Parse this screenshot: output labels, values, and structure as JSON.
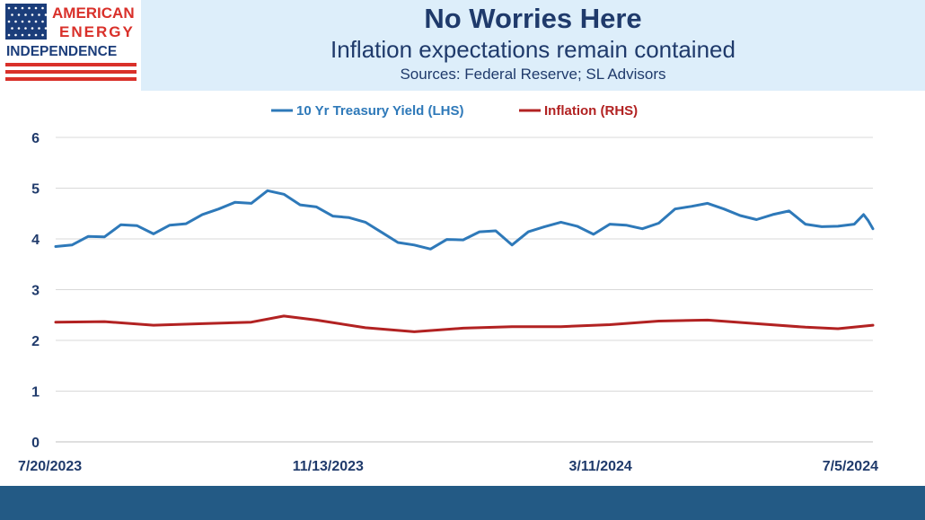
{
  "header": {
    "logo_lines": [
      "AMERICAN",
      "ENERGY",
      "INDEPENDENCE"
    ],
    "title": "No Worries Here",
    "subtitle": "Inflation expectations remain contained",
    "sources": "Sources: Federal Reserve; SL Advisors"
  },
  "colors": {
    "treasury": "#2e79b9",
    "inflation": "#b22222",
    "text": "#1f3a6b",
    "header_band": "#ddeefa",
    "footer": "#235a85",
    "logo_red": "#d9302a",
    "logo_blue": "#1b3d7a"
  },
  "chart_data": {
    "type": "line",
    "x_tick_labels": [
      "7/20/2023",
      "11/13/2023",
      "3/11/2024",
      "7/5/2024"
    ],
    "x_start": "2023-07-20",
    "x_end": "2024-07-05",
    "ylim": [
      0,
      6
    ],
    "y_ticks": [
      0,
      1,
      2,
      3,
      4,
      5,
      6
    ],
    "grid": true,
    "legend_position": "top-center",
    "series": [
      {
        "name": "10 Yr Treasury Yield (LHS)",
        "color": "#2e79b9",
        "points": [
          [
            "2023-07-20",
            3.85
          ],
          [
            "2023-07-27",
            3.88
          ],
          [
            "2023-08-03",
            4.05
          ],
          [
            "2023-08-10",
            4.04
          ],
          [
            "2023-08-17",
            4.28
          ],
          [
            "2023-08-24",
            4.26
          ],
          [
            "2023-08-31",
            4.1
          ],
          [
            "2023-09-07",
            4.27
          ],
          [
            "2023-09-14",
            4.3
          ],
          [
            "2023-09-21",
            4.48
          ],
          [
            "2023-09-28",
            4.59
          ],
          [
            "2023-10-05",
            4.72
          ],
          [
            "2023-10-12",
            4.7
          ],
          [
            "2023-10-19",
            4.95
          ],
          [
            "2023-10-26",
            4.88
          ],
          [
            "2023-11-02",
            4.67
          ],
          [
            "2023-11-09",
            4.63
          ],
          [
            "2023-11-16",
            4.45
          ],
          [
            "2023-11-23",
            4.42
          ],
          [
            "2023-11-30",
            4.33
          ],
          [
            "2023-12-07",
            4.13
          ],
          [
            "2023-12-14",
            3.93
          ],
          [
            "2023-12-21",
            3.88
          ],
          [
            "2023-12-28",
            3.8
          ],
          [
            "2024-01-04",
            3.99
          ],
          [
            "2024-01-11",
            3.98
          ],
          [
            "2024-01-18",
            4.14
          ],
          [
            "2024-01-25",
            4.16
          ],
          [
            "2024-02-01",
            3.88
          ],
          [
            "2024-02-08",
            4.14
          ],
          [
            "2024-02-15",
            4.24
          ],
          [
            "2024-02-22",
            4.33
          ],
          [
            "2024-02-29",
            4.25
          ],
          [
            "2024-03-07",
            4.09
          ],
          [
            "2024-03-14",
            4.29
          ],
          [
            "2024-03-21",
            4.27
          ],
          [
            "2024-03-28",
            4.2
          ],
          [
            "2024-04-04",
            4.31
          ],
          [
            "2024-04-11",
            4.59
          ],
          [
            "2024-04-18",
            4.64
          ],
          [
            "2024-04-25",
            4.7
          ],
          [
            "2024-05-02",
            4.59
          ],
          [
            "2024-05-09",
            4.46
          ],
          [
            "2024-05-16",
            4.38
          ],
          [
            "2024-05-23",
            4.48
          ],
          [
            "2024-05-30",
            4.55
          ],
          [
            "2024-06-06",
            4.29
          ],
          [
            "2024-06-13",
            4.24
          ],
          [
            "2024-06-20",
            4.25
          ],
          [
            "2024-06-27",
            4.29
          ],
          [
            "2024-07-01",
            4.48
          ],
          [
            "2024-07-03",
            4.36
          ],
          [
            "2024-07-05",
            4.2
          ]
        ]
      },
      {
        "name": "Inflation (RHS)",
        "color": "#b22222",
        "points": [
          [
            "2023-07-20",
            2.36
          ],
          [
            "2023-08-10",
            2.37
          ],
          [
            "2023-08-31",
            2.3
          ],
          [
            "2023-09-21",
            2.33
          ],
          [
            "2023-10-12",
            2.36
          ],
          [
            "2023-10-26",
            2.48
          ],
          [
            "2023-11-09",
            2.4
          ],
          [
            "2023-11-30",
            2.25
          ],
          [
            "2023-12-21",
            2.17
          ],
          [
            "2024-01-11",
            2.24
          ],
          [
            "2024-02-01",
            2.27
          ],
          [
            "2024-02-22",
            2.27
          ],
          [
            "2024-03-14",
            2.31
          ],
          [
            "2024-04-04",
            2.38
          ],
          [
            "2024-04-25",
            2.4
          ],
          [
            "2024-05-16",
            2.33
          ],
          [
            "2024-06-06",
            2.26
          ],
          [
            "2024-06-20",
            2.23
          ],
          [
            "2024-07-05",
            2.3
          ]
        ]
      }
    ]
  }
}
